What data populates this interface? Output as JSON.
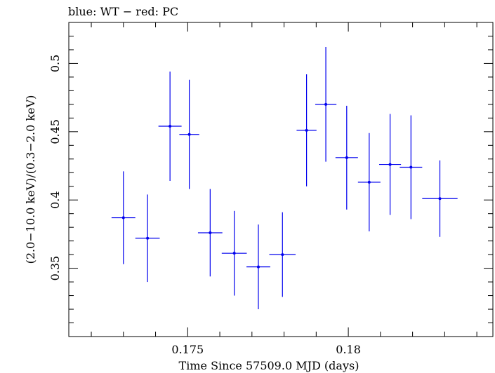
{
  "chart_data": {
    "type": "scatter",
    "title": "blue: WT − red: PC",
    "xlabel": "Time Since 57509.0 MJD (days)",
    "ylabel": "(2.0−10.0 keV)/(0.3−2.0 keV)",
    "xlim": [
      0.1713,
      0.1845
    ],
    "ylim": [
      0.3,
      0.53
    ],
    "xticks": [
      0.175,
      0.18
    ],
    "xtick_labels": [
      "0.175",
      "0.18"
    ],
    "yticks": [
      0.35,
      0.4,
      0.45,
      0.5
    ],
    "ytick_labels": [
      "0.35",
      "0.4",
      "0.45",
      "0.5"
    ],
    "grid": false,
    "series": [
      {
        "color": "#0000ee",
        "points": [
          {
            "x": 0.173,
            "xerr": 0.00037,
            "y": 0.387,
            "yerr": 0.034
          },
          {
            "x": 0.17375,
            "xerr": 0.00038,
            "y": 0.372,
            "yerr": 0.032
          },
          {
            "x": 0.17445,
            "xerr": 0.00036,
            "y": 0.454,
            "yerr": 0.04
          },
          {
            "x": 0.17505,
            "xerr": 0.00031,
            "y": 0.448,
            "yerr": 0.04
          },
          {
            "x": 0.1757,
            "xerr": 0.00038,
            "y": 0.376,
            "yerr": 0.032
          },
          {
            "x": 0.17645,
            "xerr": 0.00039,
            "y": 0.361,
            "yerr": 0.031
          },
          {
            "x": 0.1772,
            "xerr": 0.00037,
            "y": 0.351,
            "yerr": 0.031
          },
          {
            "x": 0.17795,
            "xerr": 0.00041,
            "y": 0.36,
            "yerr": 0.031
          },
          {
            "x": 0.1787,
            "xerr": 0.00031,
            "y": 0.451,
            "yerr": 0.041
          },
          {
            "x": 0.1793,
            "xerr": 0.00033,
            "y": 0.47,
            "yerr": 0.042
          },
          {
            "x": 0.17995,
            "xerr": 0.00035,
            "y": 0.431,
            "yerr": 0.038
          },
          {
            "x": 0.18065,
            "xerr": 0.00035,
            "y": 0.413,
            "yerr": 0.036
          },
          {
            "x": 0.1813,
            "xerr": 0.00034,
            "y": 0.426,
            "yerr": 0.037
          },
          {
            "x": 0.18195,
            "xerr": 0.00035,
            "y": 0.424,
            "yerr": 0.038
          },
          {
            "x": 0.18285,
            "xerr": 0.00055,
            "y": 0.401,
            "yerr": 0.028
          }
        ]
      }
    ]
  }
}
